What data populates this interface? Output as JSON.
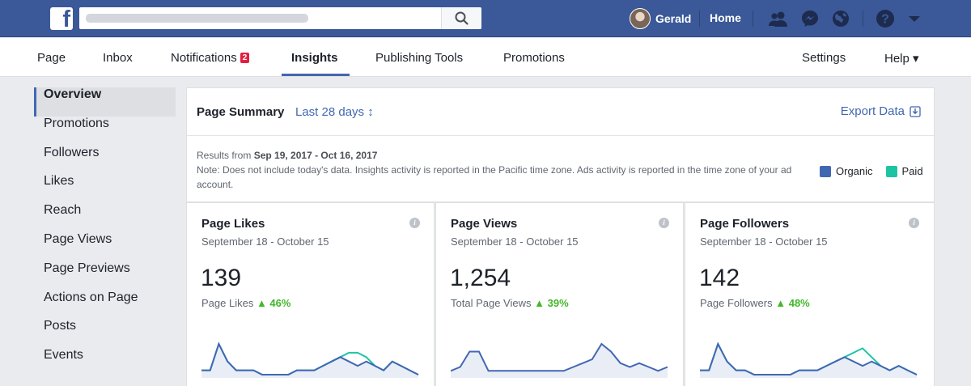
{
  "topbar": {
    "logo": "f",
    "profile_name": "Gerald",
    "home_label": "Home"
  },
  "nav": {
    "tabs": [
      {
        "label": "Page"
      },
      {
        "label": "Inbox"
      },
      {
        "label": "Notifications"
      },
      {
        "label": "Insights"
      },
      {
        "label": "Publishing Tools"
      },
      {
        "label": "Promotions"
      }
    ],
    "notifications_count": "2",
    "settings_label": "Settings",
    "help_label": "Help ▾"
  },
  "sidebar": {
    "items": [
      {
        "label": "Overview"
      },
      {
        "label": "Promotions"
      },
      {
        "label": "Followers"
      },
      {
        "label": "Likes"
      },
      {
        "label": "Reach"
      },
      {
        "label": "Page Views"
      },
      {
        "label": "Page Previews"
      },
      {
        "label": "Actions on Page"
      },
      {
        "label": "Posts"
      },
      {
        "label": "Events"
      }
    ]
  },
  "summary": {
    "title": "Page Summary",
    "date_range": "Last 28 days ↕",
    "export_label": "Export Data",
    "results_prefix": "Results from ",
    "results_dates": "Sep 19, 2017 - Oct 16, 2017",
    "note": "Note: Does not include today's data. Insights activity is reported in the Pacific time zone. Ads activity is reported in the time zone of your ad account.",
    "legend": [
      {
        "label": "Organic",
        "color": "#4267b2"
      },
      {
        "label": "Paid",
        "color": "#1dc4a4"
      }
    ]
  },
  "colors": {
    "brand": "#3b5998",
    "accent": "#4267b2",
    "paid": "#1dc4a4",
    "positive": "#42b72a"
  },
  "metrics": [
    {
      "title": "Page Likes",
      "range": "September 18 - October 15",
      "value": "139",
      "caption": "Page Likes",
      "change": "▲ 46%",
      "organic": [
        1,
        1,
        7,
        3,
        1,
        1,
        1,
        0,
        0,
        0,
        0,
        1,
        1,
        1,
        2,
        3,
        4,
        3,
        2,
        3,
        2,
        1,
        3,
        2,
        1,
        0
      ],
      "paid": [
        0,
        0,
        0,
        0,
        0,
        0,
        0,
        0,
        0,
        0,
        0,
        0,
        0,
        0,
        0,
        0,
        0,
        2,
        3,
        1,
        0,
        0,
        0,
        0,
        0,
        0
      ]
    },
    {
      "title": "Page Views",
      "range": "September 18 - October 15",
      "value": "1,254",
      "caption": "Total Page Views",
      "change": "▲ 39%",
      "organic": [
        1,
        2,
        6,
        6,
        1,
        1,
        1,
        1,
        1,
        1,
        1,
        1,
        1,
        2,
        3,
        4,
        8,
        6,
        3,
        2,
        3,
        2,
        1,
        2
      ],
      "paid": []
    },
    {
      "title": "Page Followers",
      "range": "September 18 - October 15",
      "value": "142",
      "caption": "Page Followers",
      "change": "▲ 48%",
      "organic": [
        1,
        1,
        7,
        3,
        1,
        1,
        0,
        0,
        0,
        0,
        0,
        1,
        1,
        1,
        2,
        3,
        4,
        3,
        2,
        3,
        2,
        1,
        2,
        1,
        0
      ],
      "paid": [
        0,
        0,
        0,
        0,
        0,
        0,
        0,
        0,
        0,
        0,
        0,
        0,
        0,
        0,
        0,
        0,
        0,
        2,
        4,
        1,
        0,
        0,
        0,
        0,
        0
      ]
    }
  ]
}
